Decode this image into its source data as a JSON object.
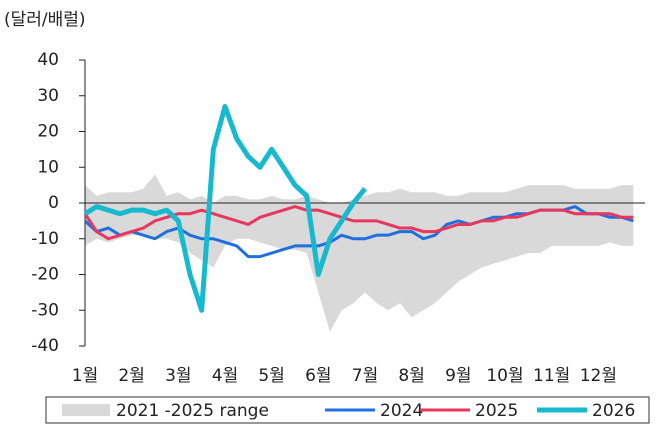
{
  "chart_data": {
    "type": "line",
    "y_label": "(달러/배럴)",
    "categories": [
      "1월",
      null,
      null,
      null,
      "2월",
      null,
      null,
      null,
      "3월",
      null,
      null,
      null,
      "4월",
      null,
      null,
      null,
      "5월",
      null,
      null,
      null,
      "6월",
      null,
      null,
      null,
      "7월",
      null,
      null,
      null,
      "8월",
      null,
      null,
      null,
      "9월",
      null,
      null,
      null,
      "10월",
      null,
      null,
      null,
      "11월",
      null,
      null,
      null,
      "12월",
      null,
      null,
      null
    ],
    "ylim": [
      -40,
      40
    ],
    "yticks": [
      -40,
      -30,
      -20,
      -10,
      0,
      10,
      20,
      30,
      40
    ],
    "range": {
      "name": "2021 -2025 range",
      "color": "#d9d9d9",
      "high": [
        5,
        2,
        3,
        3,
        3,
        4,
        8,
        2,
        3,
        1,
        2,
        0,
        2,
        2,
        1,
        1,
        2,
        1,
        1,
        2,
        1,
        0,
        0,
        1,
        2,
        3,
        3,
        4,
        3,
        3,
        3,
        2,
        2,
        3,
        3,
        3,
        3,
        4,
        5,
        5,
        5,
        5,
        4,
        4,
        4,
        4,
        5,
        5
      ],
      "low": [
        -12,
        -10,
        -11,
        -10,
        -9,
        -9,
        -10,
        -10,
        -11,
        -14,
        -16,
        -18,
        -12,
        -10,
        -10,
        -11,
        -12,
        -13,
        -13,
        -14,
        -25,
        -36,
        -30,
        -28,
        -25,
        -28,
        -30,
        -28,
        -32,
        -30,
        -28,
        -25,
        -22,
        -20,
        -18,
        -17,
        -16,
        -15,
        -14,
        -14,
        -12,
        -12,
        -12,
        -12,
        -12,
        -11,
        -12,
        -12
      ]
    },
    "series": [
      {
        "name": "2024",
        "color": "#1f6fe0",
        "width": 3,
        "values": [
          -5,
          -8,
          -7,
          -9,
          -8,
          -9,
          -10,
          -8,
          -7,
          -9,
          -10,
          -10,
          -11,
          -12,
          -15,
          -15,
          -14,
          -13,
          -12,
          -12,
          -12,
          -11,
          -9,
          -10,
          -10,
          -9,
          -9,
          -8,
          -8,
          -10,
          -9,
          -6,
          -5,
          -6,
          -5,
          -4,
          -4,
          -3,
          -3,
          -2,
          -2,
          -2,
          -1,
          -3,
          -3,
          -4,
          -4,
          -5
        ]
      },
      {
        "name": "2025",
        "color": "#e8365d",
        "width": 3,
        "values": [
          -3,
          -8,
          -10,
          -9,
          -8,
          -7,
          -5,
          -4,
          -3,
          -3,
          -2,
          -3,
          -4,
          -5,
          -6,
          -4,
          -3,
          -2,
          -1,
          -2,
          -2,
          -3,
          -4,
          -5,
          -5,
          -5,
          -6,
          -7,
          -7,
          -8,
          -8,
          -7,
          -6,
          -6,
          -5,
          -5,
          -4,
          -4,
          -3,
          -2,
          -2,
          -2,
          -3,
          -3,
          -3,
          -3,
          -4,
          -4
        ]
      },
      {
        "name": "2026",
        "color": "#17b9cf",
        "width": 5,
        "values": [
          -3,
          -1,
          -2,
          -3,
          -2,
          -2,
          -3,
          -2,
          -5,
          -20,
          -30,
          15,
          27,
          18,
          13,
          10,
          15,
          10,
          5,
          2,
          -20,
          -10,
          -5,
          0,
          4,
          null,
          null,
          null,
          null,
          null,
          null,
          null,
          null,
          null,
          null,
          null,
          null,
          null,
          null,
          null,
          null,
          null,
          null,
          null,
          null,
          null,
          null,
          null
        ]
      }
    ]
  }
}
